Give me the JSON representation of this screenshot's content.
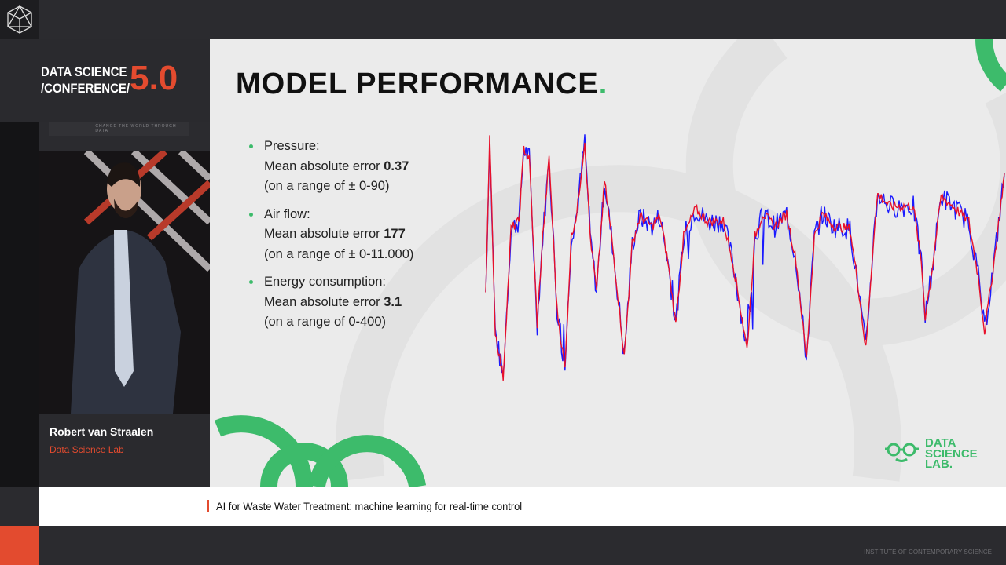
{
  "header": {
    "logo_icon": "polyhedron-icon"
  },
  "branding": {
    "line1": "DATA SCIENCE",
    "line2": "/CONFERENCE/",
    "version": "5.0",
    "tagline": "CHANGE THE WORLD THROUGH DATA"
  },
  "speaker": {
    "name": "Robert van Straalen",
    "org": "Data Science Lab"
  },
  "slide": {
    "title": "MODEL PERFORMANCE",
    "title_dot": ".",
    "bullets": [
      {
        "label": "Pressure:",
        "metric": "Mean absolute error ",
        "value": "0.37",
        "range": "(on a range of ± 0-90)"
      },
      {
        "label": "Air flow:",
        "metric": "Mean absolute error ",
        "value": "177",
        "range": "(on a range of ± 0-11.000)"
      },
      {
        "label": "Energy consumption:",
        "metric": "Mean absolute error ",
        "value": "3.1",
        "range": "(on a range of 0-400)"
      }
    ],
    "logo": {
      "line1": "DATA",
      "line2": "SCIENCE",
      "line3": "LAB."
    }
  },
  "chart_data": {
    "type": "line",
    "title": "",
    "xlabel": "",
    "ylabel": "",
    "grid": false,
    "legend": "none",
    "colors": {
      "actual": "#1a1aff",
      "predicted": "#e8102a"
    },
    "x": [
      0,
      5,
      12,
      22,
      32,
      42,
      48,
      55,
      65,
      72,
      80,
      90,
      100,
      108,
      115,
      125,
      132,
      140,
      150,
      160,
      175,
      185,
      195,
      210,
      220,
      230,
      240,
      250,
      265,
      280,
      300,
      312,
      330,
      340,
      350,
      365,
      380,
      392,
      405,
      415,
      425,
      440,
      460,
      470,
      480,
      490,
      495,
      510,
      540,
      550,
      555,
      565,
      575,
      590,
      610,
      622,
      630,
      642,
      655
    ],
    "series": [
      {
        "values": [
          37,
          98,
          21,
          3,
          62,
          65,
          94,
          90,
          24,
          59,
          90,
          30,
          6,
          59,
          68,
          97,
          59,
          37,
          81,
          56,
          11,
          56,
          67,
          63,
          67,
          49,
          24,
          59,
          70,
          65,
          65,
          49,
          14,
          59,
          68,
          63,
          68,
          49,
          10,
          59,
          68,
          63,
          62,
          40,
          14,
          59,
          76,
          71,
          71,
          49,
          27,
          49,
          75,
          71,
          65,
          43,
          21,
          49,
          84
        ]
      },
      {
        "values": [
          37,
          98,
          21,
          3,
          62,
          65,
          94,
          90,
          24,
          59,
          90,
          30,
          6,
          59,
          68,
          97,
          59,
          37,
          81,
          56,
          11,
          56,
          67,
          63,
          67,
          49,
          24,
          59,
          70,
          65,
          65,
          49,
          14,
          59,
          68,
          63,
          68,
          49,
          10,
          59,
          68,
          63,
          62,
          40,
          14,
          59,
          76,
          71,
          71,
          49,
          27,
          49,
          75,
          71,
          65,
          43,
          21,
          49,
          84
        ]
      }
    ]
  },
  "lower_third": {
    "text": "AI for Waste Water Treatment: machine learning for real-time control"
  },
  "footer": {
    "text": "INSTITUTE OF CONTEMPORARY SCIENCE"
  },
  "colors": {
    "accent_orange": "#e34b2f",
    "accent_green": "#3dbb6b"
  }
}
